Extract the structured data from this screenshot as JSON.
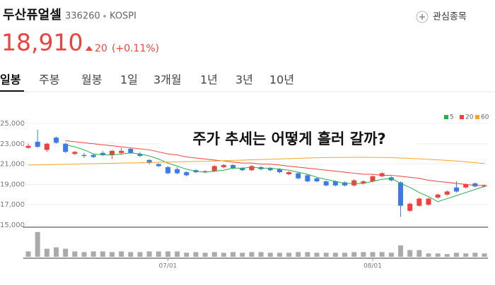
{
  "header": {
    "name": "두산퓨얼셀",
    "code": "336260",
    "market": "KOSPI",
    "watchlist": "관심종목"
  },
  "price": {
    "current": "18,910",
    "change": "20",
    "change_pct": "(+0.11%)"
  },
  "tabs": [
    "일봉",
    "주봉",
    "월봉",
    "1일",
    "3개월",
    "1년",
    "3년",
    "10년"
  ],
  "chart_data": {
    "type": "candlestick",
    "overlay_text": "주가 추세는 어떻게 흘러 갈까?",
    "up_color": "#f0413e",
    "down_color": "#3c7be6",
    "volume_color": "#aaaaaa",
    "grid": true,
    "ylim": [
      15000,
      25000
    ],
    "yticks": [
      {
        "value": 15000,
        "label": "15,000"
      },
      {
        "value": 17000,
        "label": "17,000"
      },
      {
        "value": 19000,
        "label": "19,000"
      },
      {
        "value": 21000,
        "label": "21,000"
      },
      {
        "value": 23000,
        "label": "23,000"
      },
      {
        "value": 25000,
        "label": "25,000"
      }
    ],
    "categories": [
      null,
      null,
      null,
      null,
      null,
      null,
      null,
      null,
      null,
      null,
      null,
      null,
      null,
      null,
      null,
      "07/01",
      null,
      null,
      null,
      null,
      null,
      null,
      null,
      null,
      null,
      null,
      null,
      null,
      null,
      null,
      null,
      null,
      null,
      null,
      null,
      null,
      null,
      "08/01",
      null,
      null,
      null,
      null,
      null,
      null,
      null,
      null,
      null,
      null,
      null,
      null
    ],
    "open": [
      22600,
      23200,
      22400,
      23600,
      23000,
      22000,
      21900,
      21900,
      22100,
      21900,
      22100,
      22500,
      22000,
      21400,
      21000,
      20700,
      20500,
      20200,
      20400,
      20200,
      20300,
      20700,
      20900,
      20600,
      20400,
      20700,
      20600,
      20500,
      20000,
      20100,
      19900,
      19600,
      19300,
      19300,
      19200,
      18900,
      19100,
      19300,
      19800,
      19700,
      19200,
      16400,
      16900,
      17000,
      17700,
      18000,
      18700,
      18700,
      19100,
      18800
    ],
    "high": [
      23000,
      24400,
      23100,
      23700,
      23100,
      22300,
      22100,
      22000,
      22300,
      22400,
      22600,
      22600,
      22200,
      21500,
      21100,
      20800,
      20700,
      20300,
      20500,
      20400,
      20900,
      21000,
      21000,
      20700,
      20900,
      20800,
      20700,
      20600,
      20300,
      20200,
      20000,
      19700,
      19400,
      19400,
      19300,
      19500,
      19400,
      19900,
      20200,
      19800,
      19300,
      17200,
      17700,
      17700,
      18100,
      18400,
      19300,
      19100,
      19200,
      19000
    ],
    "low": [
      22500,
      22600,
      22200,
      23000,
      22100,
      21900,
      21600,
      21600,
      21800,
      21500,
      21900,
      22000,
      21700,
      21000,
      20700,
      20000,
      20000,
      19800,
      20100,
      20100,
      20200,
      20600,
      20500,
      20300,
      20300,
      20400,
      20300,
      20100,
      19900,
      19500,
      19200,
      19200,
      18800,
      18800,
      18800,
      18800,
      19000,
      19200,
      19700,
      19300,
      15800,
      16300,
      16800,
      16900,
      17600,
      17900,
      18200,
      18600,
      18700,
      18700
    ],
    "close": [
      22800,
      22700,
      23000,
      23100,
      22200,
      22200,
      21800,
      21700,
      21900,
      22300,
      22300,
      22100,
      21800,
      21100,
      20800,
      20100,
      20100,
      19900,
      20200,
      20300,
      20800,
      20900,
      20600,
      20400,
      20800,
      20500,
      20400,
      20200,
      20200,
      19600,
      19300,
      19300,
      18900,
      18900,
      18900,
      19400,
      19300,
      19800,
      20100,
      19400,
      16900,
      17100,
      17600,
      17600,
      18000,
      18300,
      18300,
      19000,
      18800,
      18910
    ],
    "volume_lim": [
      0,
      40
    ],
    "volume": [
      8,
      37,
      12,
      14,
      12,
      8,
      7,
      8,
      8,
      7,
      8,
      7,
      7,
      8,
      8,
      8,
      8,
      6,
      7,
      6,
      7,
      6,
      7,
      6,
      7,
      7,
      6,
      6,
      6,
      7,
      7,
      6,
      6,
      6,
      6,
      7,
      7,
      7,
      7,
      6,
      17,
      10,
      10,
      5,
      5,
      4,
      6,
      5,
      6,
      5
    ],
    "series": [
      {
        "name": "5",
        "color": "#22b14c",
        "values": [
          null,
          null,
          null,
          null,
          22900,
          22700,
          22400,
          22000,
          21900,
          21900,
          22000,
          22100,
          22000,
          21800,
          21500,
          21100,
          20800,
          20500,
          20300,
          20200,
          20300,
          20400,
          20600,
          20600,
          20700,
          20600,
          20600,
          20500,
          20400,
          20200,
          20000,
          19700,
          19500,
          19300,
          19100,
          19100,
          19100,
          19300,
          19500,
          19600,
          19100,
          18700,
          18200,
          17800,
          17300,
          17600,
          17900,
          18200,
          18500,
          18800
        ]
      },
      {
        "name": "20",
        "color": "#f0413e",
        "values": [
          null,
          null,
          null,
          null,
          23300,
          23200,
          23100,
          23000,
          22900,
          22800,
          22700,
          22600,
          22500,
          22400,
          22200,
          22000,
          21900,
          21700,
          21600,
          21500,
          21400,
          21300,
          21200,
          21100,
          21100,
          21000,
          21000,
          20900,
          20800,
          20700,
          20600,
          20500,
          20400,
          20300,
          20200,
          20100,
          20000,
          20000,
          19900,
          19900,
          19800,
          19700,
          19600,
          19400,
          19300,
          19200,
          19100,
          19000,
          18900,
          18900
        ]
      },
      {
        "name": "60",
        "color": "#f5a623",
        "values": [
          20900,
          20920,
          20940,
          20960,
          20980,
          21000,
          21020,
          21040,
          21060,
          21080,
          21100,
          21120,
          21140,
          21160,
          21180,
          21200,
          21220,
          21240,
          21260,
          21280,
          21300,
          21330,
          21360,
          21390,
          21420,
          21450,
          21480,
          21510,
          21540,
          21570,
          21600,
          21620,
          21640,
          21650,
          21660,
          21670,
          21670,
          21660,
          21650,
          21630,
          21600,
          21560,
          21520,
          21470,
          21420,
          21360,
          21300,
          21220,
          21140,
          21060
        ]
      }
    ]
  }
}
